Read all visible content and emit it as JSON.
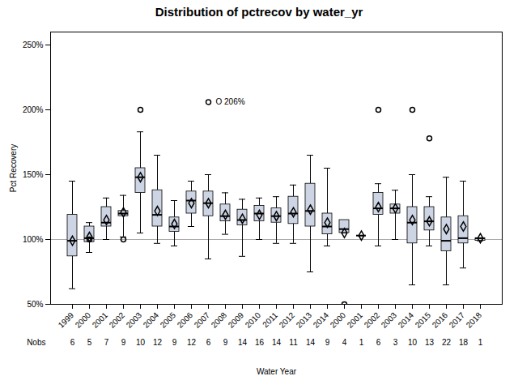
{
  "chart_data": {
    "type": "box",
    "title": "Distribution of pctrecov by water_yr",
    "xlabel": "Water Year",
    "ylabel": "Pct Recovery",
    "ylim": [
      50,
      260
    ],
    "yticks": [
      {
        "value": 50,
        "label": "50%"
      },
      {
        "value": 100,
        "label": "100%"
      },
      {
        "value": 150,
        "label": "150%"
      },
      {
        "value": 200,
        "label": "200%"
      },
      {
        "value": 250,
        "label": "250%"
      }
    ],
    "color": "#cdd4e3",
    "reference_lines": [
      100
    ],
    "annotations": [
      {
        "text": "O 206%",
        "x": "2007",
        "y": 206
      }
    ],
    "categories": [
      "1999",
      "2000",
      "2001",
      "2002",
      "2003",
      "2004",
      "2005",
      "2006",
      "2007",
      "2008",
      "2009",
      "2010",
      "2011",
      "2012",
      "2013",
      "2014",
      "2000",
      "2001",
      "2002",
      "2003",
      "2014",
      "2015",
      "2016",
      "2017",
      "2018"
    ],
    "nobs_label": "Nobs",
    "nobs": [
      6,
      5,
      7,
      9,
      10,
      12,
      9,
      12,
      6,
      9,
      14,
      16,
      14,
      11,
      14,
      9,
      4,
      1,
      6,
      3,
      10,
      13,
      22,
      18,
      1
    ],
    "boxes": [
      {
        "q1": 87,
        "median": 99,
        "q3": 119,
        "mean": 99,
        "whislo": 62,
        "whishi": 145,
        "fliers": []
      },
      {
        "q1": 98,
        "median": 101,
        "q3": 110,
        "mean": 102,
        "whislo": 90,
        "whishi": 113,
        "fliers": [
          100
        ]
      },
      {
        "q1": 110,
        "median": 113,
        "q3": 125,
        "mean": 115,
        "whislo": 100,
        "whishi": 132,
        "fliers": []
      },
      {
        "q1": 118,
        "median": 120,
        "q3": 122,
        "mean": 121,
        "whislo": 102,
        "whishi": 134,
        "fliers": [
          100
        ]
      },
      {
        "q1": 136,
        "median": 148,
        "q3": 155,
        "mean": 148,
        "whislo": 105,
        "whishi": 183,
        "fliers": [
          200
        ]
      },
      {
        "q1": 110,
        "median": 119,
        "q3": 138,
        "mean": 122,
        "whislo": 97,
        "whishi": 165,
        "fliers": []
      },
      {
        "q1": 106,
        "median": 110,
        "q3": 117,
        "mean": 112,
        "whislo": 95,
        "whishi": 130,
        "fliers": []
      },
      {
        "q1": 120,
        "median": 130,
        "q3": 137,
        "mean": 128,
        "whislo": 110,
        "whishi": 145,
        "fliers": []
      },
      {
        "q1": 118,
        "median": 128,
        "q3": 137,
        "mean": 128,
        "whislo": 85,
        "whishi": 150,
        "fliers": [
          206
        ]
      },
      {
        "q1": 114,
        "median": 118,
        "q3": 127,
        "mean": 119,
        "whislo": 104,
        "whishi": 136,
        "fliers": []
      },
      {
        "q1": 111,
        "median": 115,
        "q3": 123,
        "mean": 116,
        "whislo": 87,
        "whishi": 131,
        "fliers": []
      },
      {
        "q1": 114,
        "median": 120,
        "q3": 126,
        "mean": 119,
        "whislo": 100,
        "whishi": 132,
        "fliers": []
      },
      {
        "q1": 113,
        "median": 118,
        "q3": 124,
        "mean": 118,
        "whislo": 97,
        "whishi": 133,
        "fliers": []
      },
      {
        "q1": 112,
        "median": 120,
        "q3": 133,
        "mean": 121,
        "whislo": 97,
        "whishi": 142,
        "fliers": []
      },
      {
        "q1": 110,
        "median": 122,
        "q3": 143,
        "mean": 123,
        "whislo": 75,
        "whishi": 165,
        "fliers": []
      },
      {
        "q1": 104,
        "median": 110,
        "q3": 120,
        "mean": 113,
        "whislo": 95,
        "whishi": 155,
        "fliers": []
      },
      {
        "q1": 105,
        "median": 108,
        "q3": 115,
        "mean": 105,
        "whislo": 105,
        "whishi": 115,
        "fliers": [
          50
        ]
      },
      {
        "q1": 103,
        "median": 103,
        "q3": 103,
        "mean": 103,
        "whislo": 103,
        "whishi": 103,
        "fliers": []
      },
      {
        "q1": 119,
        "median": 124,
        "q3": 136,
        "mean": 125,
        "whislo": 95,
        "whishi": 143,
        "fliers": [
          200
        ]
      },
      {
        "q1": 120,
        "median": 124,
        "q3": 127,
        "mean": 124,
        "whislo": 100,
        "whishi": 138,
        "fliers": []
      },
      {
        "q1": 97,
        "median": 113,
        "q3": 125,
        "mean": 115,
        "whislo": 65,
        "whishi": 150,
        "fliers": [
          200
        ]
      },
      {
        "q1": 107,
        "median": 114,
        "q3": 125,
        "mean": 114,
        "whislo": 95,
        "whishi": 133,
        "fliers": [
          178
        ]
      },
      {
        "q1": 91,
        "median": 99,
        "q3": 117,
        "mean": 108,
        "whislo": 65,
        "whishi": 148,
        "fliers": []
      },
      {
        "q1": 97,
        "median": 101,
        "q3": 118,
        "mean": 110,
        "whislo": 78,
        "whishi": 145,
        "fliers": []
      },
      {
        "q1": 99,
        "median": 101,
        "q3": 101,
        "mean": 101,
        "whislo": 99,
        "whishi": 101,
        "fliers": []
      }
    ]
  }
}
